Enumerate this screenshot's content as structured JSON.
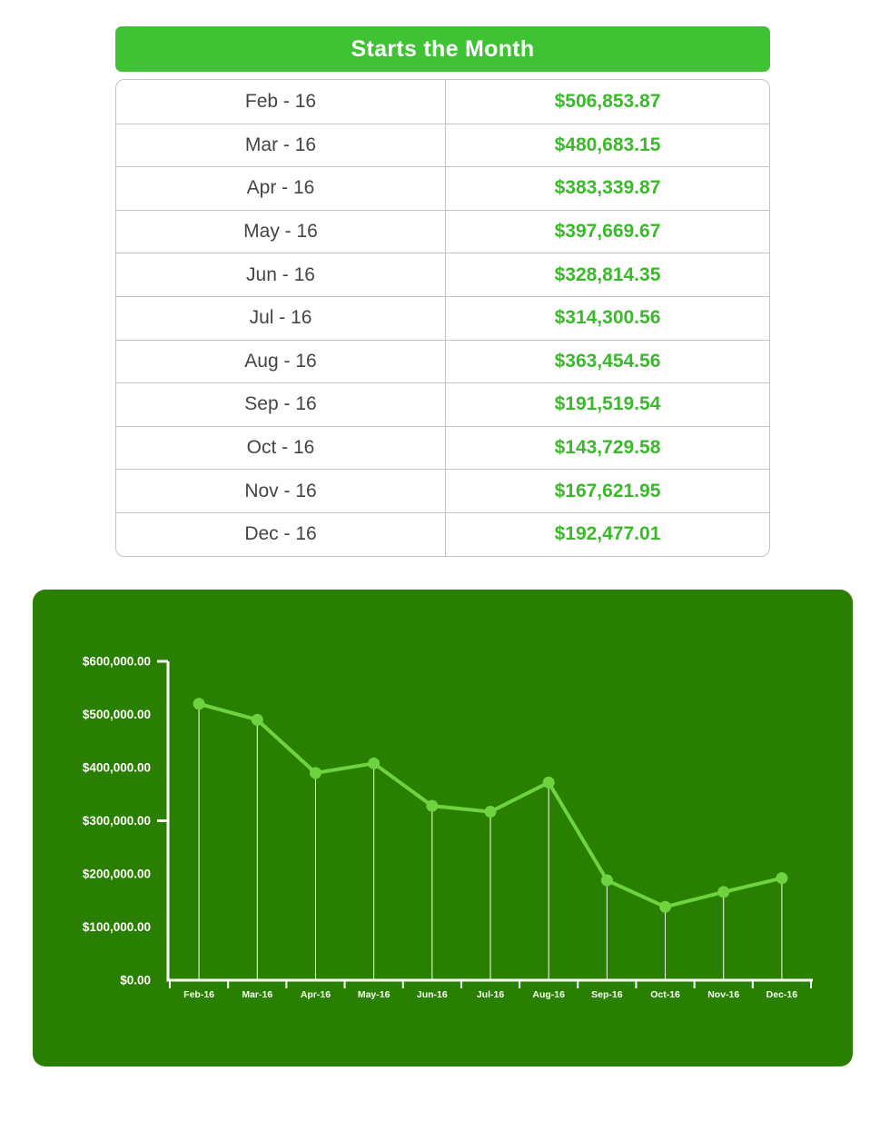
{
  "table": {
    "title": "Starts the Month",
    "rows": [
      {
        "month": "Feb - 16",
        "value": "$506,853.87"
      },
      {
        "month": "Mar - 16",
        "value": "$480,683.15"
      },
      {
        "month": "Apr - 16",
        "value": "$383,339.87"
      },
      {
        "month": "May - 16",
        "value": "$397,669.67"
      },
      {
        "month": "Jun - 16",
        "value": "$328,814.35"
      },
      {
        "month": "Jul - 16",
        "value": "$314,300.56"
      },
      {
        "month": "Aug - 16",
        "value": "$363,454.56"
      },
      {
        "month": "Sep - 16",
        "value": "$191,519.54"
      },
      {
        "month": "Oct - 16",
        "value": "$143,729.58"
      },
      {
        "month": "Nov - 16",
        "value": "$167,621.95"
      },
      {
        "month": "Dec - 16",
        "value": "$192,477.01"
      }
    ]
  },
  "colors": {
    "header_green": "#3fc234",
    "value_green": "#3cb82c",
    "panel_green": "#297f00",
    "line_green": "#6fd33f",
    "axis_white": "#ffffff"
  },
  "chart_data": {
    "type": "line",
    "categories": [
      "Feb-16",
      "Mar-16",
      "Apr-16",
      "May-16",
      "Jun-16",
      "Jul-16",
      "Aug-16",
      "Sep-16",
      "Oct-16",
      "Nov-16",
      "Dec-16"
    ],
    "series": [
      {
        "values": [
          520000,
          490000,
          390000,
          408000,
          328000,
          317000,
          372000,
          188000,
          138000,
          166000,
          192000
        ]
      }
    ],
    "y_ticks": [
      "$0.00",
      "$100,000.00",
      "$200,000.00",
      "$300,000.00",
      "$400,000.00",
      "$500,000.00",
      "$600,000.00"
    ],
    "ylim": [
      0,
      600000
    ],
    "grid": false,
    "drop_lines": true
  }
}
